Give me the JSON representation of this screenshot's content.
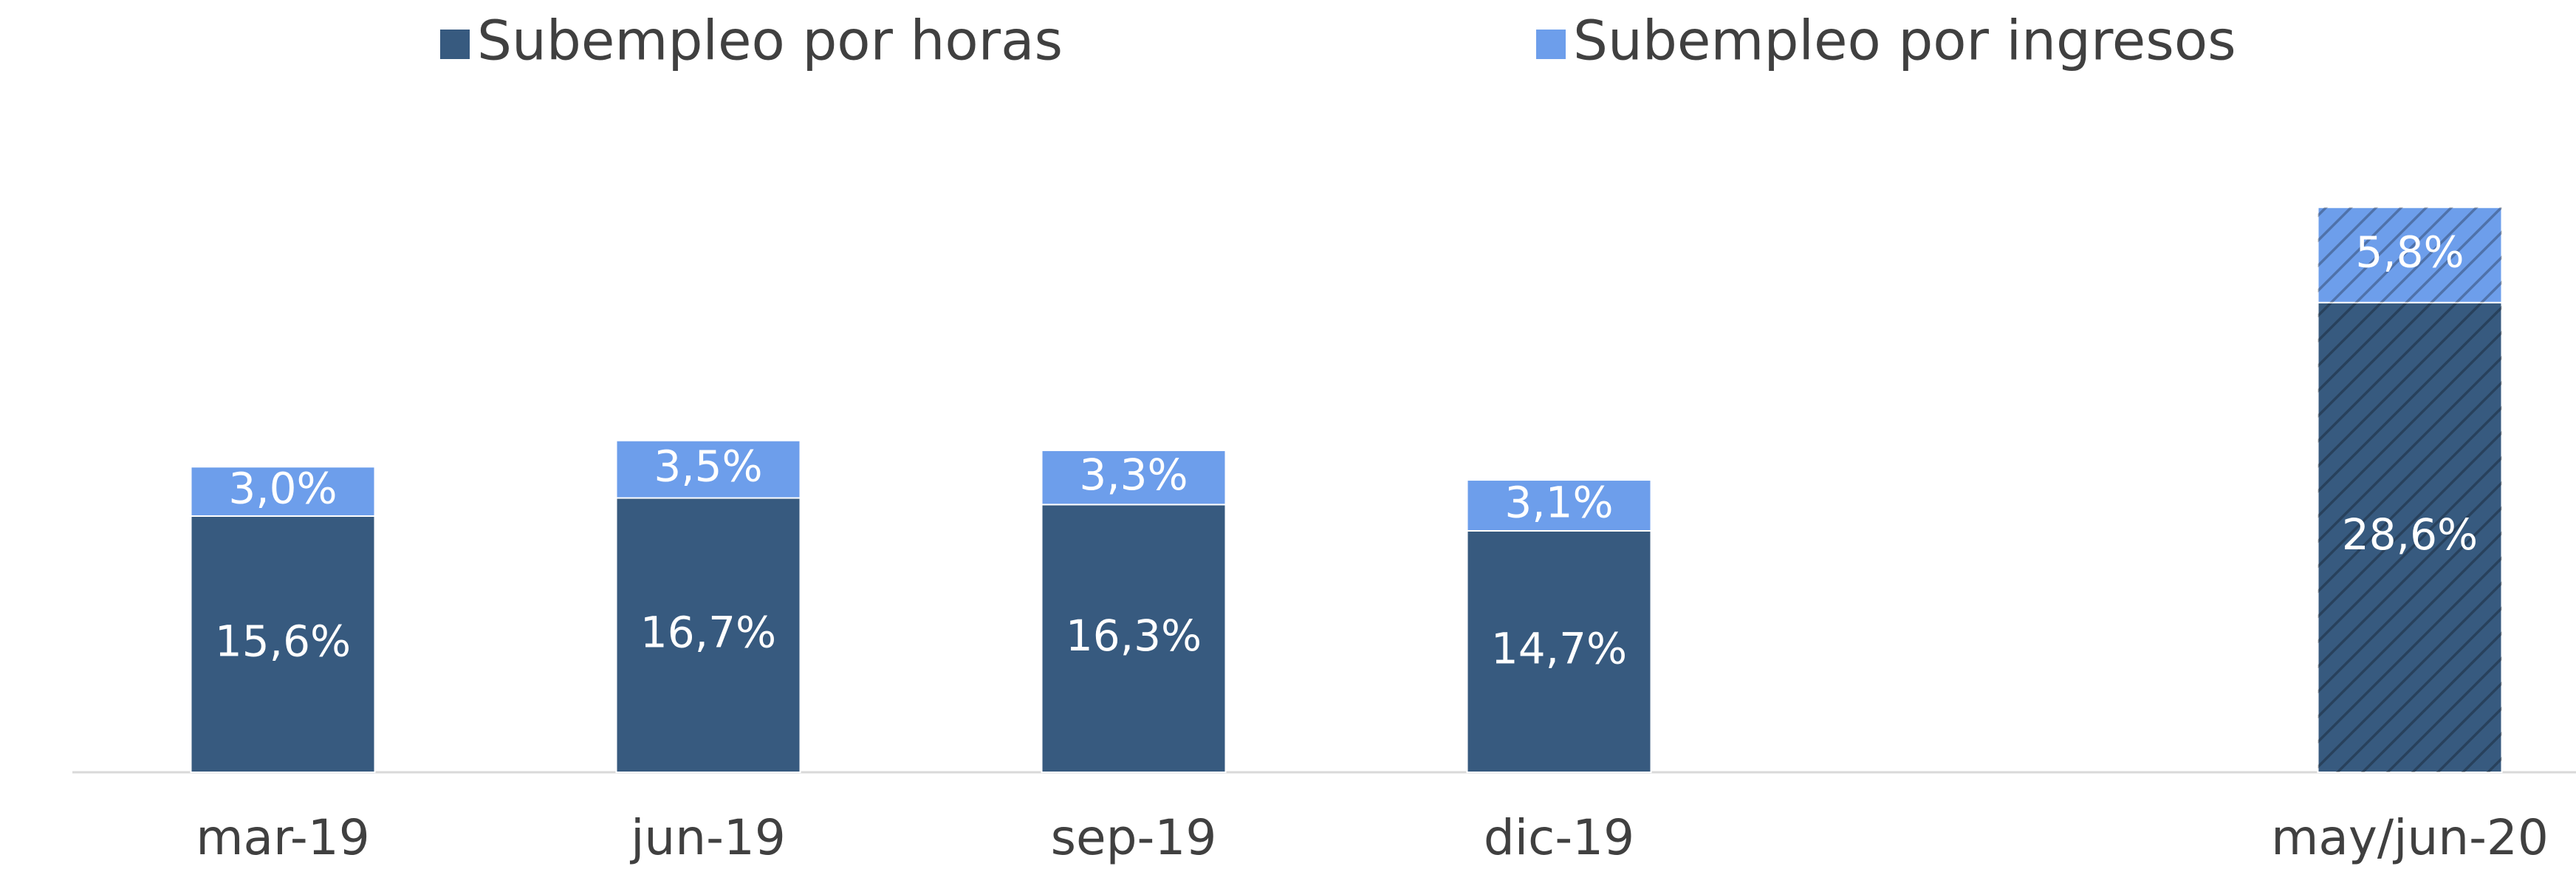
{
  "chart_data": {
    "type": "stacked_bar",
    "categories": [
      "mar-19",
      "jun-19",
      "sep-19",
      "dic-19",
      null,
      "may/jun-20"
    ],
    "series": [
      {
        "name": "Subempleo por horas",
        "color": "#375a7f",
        "values": [
          15.6,
          16.7,
          16.3,
          14.7,
          null,
          28.6
        ],
        "value_labels": [
          "15,6%",
          "16,7%",
          "16,3%",
          "14,7%",
          null,
          "28,6%"
        ]
      },
      {
        "name": "Subempleo por ingresos",
        "color": "#6d9eeb",
        "values": [
          3.0,
          3.5,
          3.3,
          3.1,
          null,
          5.8
        ],
        "value_labels": [
          "3,0%",
          "3,5%",
          "3,3%",
          "3,1%",
          null,
          "5,8%"
        ]
      }
    ],
    "hatch": [
      false,
      false,
      false,
      false,
      false,
      true
    ],
    "legend": "top"
  }
}
